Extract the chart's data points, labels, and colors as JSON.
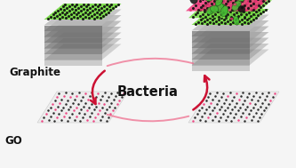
{
  "labels": {
    "graphite": "Graphite",
    "go": "GO",
    "bacteria": "Bacteria"
  },
  "colors": {
    "green_plane": "#77dd44",
    "pink_plane": "#ee3377",
    "dark_node": "#111111",
    "background": "#f5f5f5",
    "arrow_red": "#cc1133",
    "arrow_pink": "#ee6688",
    "gray_layer": "#888888",
    "layer_dark": "#333333"
  },
  "figsize": [
    3.33,
    1.89
  ],
  "dpi": 100
}
